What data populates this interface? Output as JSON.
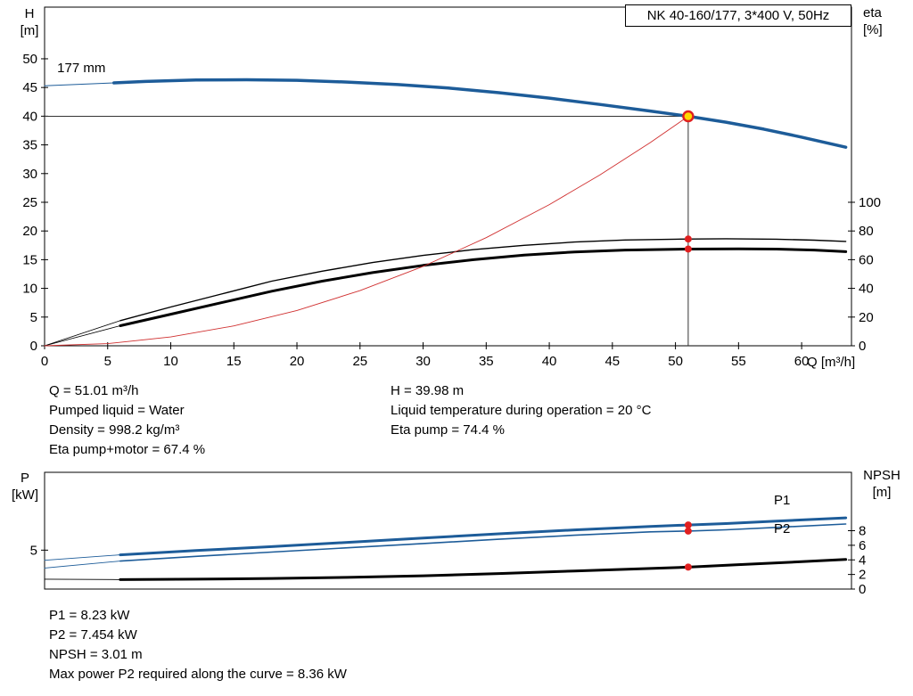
{
  "title_box": {
    "text": "NK 40-160/177, 3*400 V, 50Hz"
  },
  "axis_labels": {
    "top_left_1": "H",
    "top_left_2": "[m]",
    "top_right_1": "eta",
    "top_right_2": "[%]",
    "x_axis": "Q [m³/h]",
    "bottom_left_1": "P",
    "bottom_left_2": "[kW]",
    "bottom_right_1": "NPSH",
    "bottom_right_2": "[m]"
  },
  "info_mid": {
    "left": [
      "Q = 51.01 m³/h",
      "Pumped liquid = Water",
      "Density = 998.2 kg/m³",
      "Eta pump+motor = 67.4 %"
    ],
    "right": [
      "H = 39.98 m",
      "Liquid temperature during operation = 20 °C",
      "Eta pump = 74.4 %"
    ]
  },
  "info_bottom": {
    "lines": [
      "P1 = 8.23 kW",
      "P2 = 7.454 kW",
      "NPSH = 3.01 m",
      "Max power P2 required along the curve = 8.36 kW"
    ]
  },
  "colors": {
    "curve_blue": "#1d5c99",
    "curve_black": "#000000",
    "system_red": "#d03030",
    "marker_red": "#e02020",
    "duty_fill": "#ffd800",
    "guide": "#333333"
  },
  "chart_data": [
    {
      "id": "top",
      "type": "line",
      "title": "NK 40-160/177, 3*400 V, 50Hz",
      "xlabel": "Q [m³/h]",
      "ylabel_left": "H [m]",
      "ylabel_right": "eta [%]",
      "x_range": [
        0,
        63.95
      ],
      "x_ticks": [
        0,
        5,
        10,
        15,
        20,
        25,
        30,
        35,
        40,
        45,
        50,
        55,
        60
      ],
      "left_range": [
        0,
        59
      ],
      "left_ticks": [
        0,
        5,
        10,
        15,
        20,
        25,
        30,
        35,
        40,
        45,
        50
      ],
      "right_range": [
        0,
        236
      ],
      "right_ticks": [
        0,
        20,
        40,
        60,
        80,
        100
      ],
      "series": [
        {
          "name": "head-curve-extension",
          "axis": "left",
          "color": "#1d5c99",
          "width": 1,
          "points": [
            [
              0,
              45.3
            ],
            [
              5.5,
              45.8
            ]
          ]
        },
        {
          "name": "head-curve-177mm",
          "axis": "left",
          "color": "#1d5c99",
          "width": 3.5,
          "points": [
            [
              5.5,
              45.8
            ],
            [
              8,
              46.05
            ],
            [
              12,
              46.3
            ],
            [
              16,
              46.35
            ],
            [
              20,
              46.25
            ],
            [
              24,
              45.95
            ],
            [
              28,
              45.5
            ],
            [
              32,
              44.9
            ],
            [
              36,
              44.1
            ],
            [
              40,
              43.15
            ],
            [
              44,
              42.05
            ],
            [
              48,
              40.9
            ],
            [
              51.01,
              39.98
            ],
            [
              54,
              38.95
            ],
            [
              57,
              37.75
            ],
            [
              60,
              36.35
            ],
            [
              63.5,
              34.6
            ]
          ]
        },
        {
          "name": "eta-pump-extension",
          "axis": "right",
          "color": "#000000",
          "width": 0.8,
          "points": [
            [
              0,
              0
            ],
            [
              6,
              17.5
            ]
          ]
        },
        {
          "name": "eta-pump-curve",
          "axis": "right",
          "color": "#000000",
          "width": 1.4,
          "points": [
            [
              6,
              17.5
            ],
            [
              10,
              27
            ],
            [
              14,
              36
            ],
            [
              18,
              45
            ],
            [
              22,
              52
            ],
            [
              26,
              58
            ],
            [
              30,
              63
            ],
            [
              34,
              67
            ],
            [
              38,
              70
            ],
            [
              42,
              72.3
            ],
            [
              46,
              73.7
            ],
            [
              50,
              74.3
            ],
            [
              54,
              74.6
            ],
            [
              58,
              74.3
            ],
            [
              61,
              73.6
            ],
            [
              63.5,
              72.7
            ]
          ]
        },
        {
          "name": "eta-pump-motor-extension",
          "axis": "right",
          "color": "#000000",
          "width": 0.8,
          "points": [
            [
              0,
              0
            ],
            [
              6,
              14
            ]
          ]
        },
        {
          "name": "eta-pump-motor-curve",
          "axis": "right",
          "color": "#000000",
          "width": 3,
          "points": [
            [
              6,
              14
            ],
            [
              10,
              22
            ],
            [
              14,
              30
            ],
            [
              18,
              38
            ],
            [
              22,
              45
            ],
            [
              26,
              51
            ],
            [
              30,
              56
            ],
            [
              34,
              60
            ],
            [
              38,
              63.2
            ],
            [
              42,
              65.4
            ],
            [
              46,
              66.7
            ],
            [
              51,
              67.4
            ],
            [
              55,
              67.6
            ],
            [
              58,
              67.4
            ],
            [
              61,
              66.7
            ],
            [
              63.5,
              65.6
            ]
          ]
        },
        {
          "name": "system-curve",
          "axis": "left",
          "color": "#d03030",
          "width": 0.9,
          "points": [
            [
              0,
              0
            ],
            [
              5,
              0.38
            ],
            [
              10,
              1.54
            ],
            [
              15,
              3.46
            ],
            [
              20,
              6.15
            ],
            [
              25,
              9.61
            ],
            [
              30,
              13.83
            ],
            [
              35,
              18.83
            ],
            [
              40,
              24.59
            ],
            [
              44,
              29.75
            ],
            [
              48,
              35.4
            ],
            [
              51.01,
              39.98
            ]
          ]
        }
      ],
      "guides": [
        {
          "type": "h",
          "axis": "left",
          "value": 39.98,
          "q_from": 0,
          "q_to": 51.01
        },
        {
          "type": "v",
          "axis": "left",
          "q": 51.01,
          "v_from": 0,
          "v_to": 39.98
        }
      ],
      "markers": [
        {
          "kind": "duty-point",
          "q": 51.01,
          "value": 39.98,
          "axis": "left"
        },
        {
          "kind": "dot",
          "q": 51.01,
          "value": 74.4,
          "axis": "right"
        },
        {
          "kind": "dot",
          "q": 51.01,
          "value": 67.4,
          "axis": "right"
        }
      ],
      "labels": [
        {
          "text": "177 mm",
          "q": 1.0,
          "value": 47.7,
          "axis": "left",
          "color": "#000000"
        }
      ],
      "duty_point": {
        "Q_m3h": 51.01,
        "H_m": 39.98,
        "eta_pump_pct": 74.4,
        "eta_pump_motor_pct": 67.4
      }
    },
    {
      "id": "bottom",
      "type": "line",
      "ylabel_left": "P [kW]",
      "ylabel_right": "NPSH [m]",
      "x_range": [
        0,
        63.95
      ],
      "x_ticks": [],
      "left_range": [
        0,
        15
      ],
      "left_ticks": [
        5
      ],
      "right_range": [
        0,
        16
      ],
      "right_ticks": [
        0,
        2,
        4,
        6,
        8
      ],
      "series": [
        {
          "name": "p1-curve-extension",
          "axis": "left",
          "color": "#1d5c99",
          "width": 0.9,
          "points": [
            [
              0,
              3.7
            ],
            [
              6,
              4.4
            ]
          ]
        },
        {
          "name": "p1-curve",
          "axis": "left",
          "color": "#1d5c99",
          "width": 3,
          "points": [
            [
              6,
              4.4
            ],
            [
              12,
              4.95
            ],
            [
              18,
              5.45
            ],
            [
              24,
              6.0
            ],
            [
              30,
              6.55
            ],
            [
              36,
              7.1
            ],
            [
              42,
              7.6
            ],
            [
              48,
              8.05
            ],
            [
              51.01,
              8.23
            ],
            [
              54,
              8.42
            ],
            [
              58,
              8.72
            ],
            [
              63.5,
              9.15
            ]
          ]
        },
        {
          "name": "p2-curve-extension",
          "axis": "left",
          "color": "#1d5c99",
          "width": 0.9,
          "points": [
            [
              0,
              2.7
            ],
            [
              6,
              3.6
            ]
          ]
        },
        {
          "name": "p2-curve",
          "axis": "left",
          "color": "#1d5c99",
          "width": 1.6,
          "points": [
            [
              6,
              3.6
            ],
            [
              12,
              4.2
            ],
            [
              18,
              4.75
            ],
            [
              24,
              5.3
            ],
            [
              30,
              5.85
            ],
            [
              36,
              6.4
            ],
            [
              42,
              6.92
            ],
            [
              48,
              7.35
            ],
            [
              51.01,
              7.454
            ],
            [
              54,
              7.62
            ],
            [
              58,
              7.92
            ],
            [
              63.5,
              8.36
            ]
          ]
        },
        {
          "name": "npsh-curve-extension",
          "axis": "right",
          "color": "#000000",
          "width": 0.9,
          "points": [
            [
              0,
              1.35
            ],
            [
              6,
              1.3
            ]
          ]
        },
        {
          "name": "npsh-curve",
          "axis": "right",
          "color": "#000000",
          "width": 3,
          "points": [
            [
              6,
              1.3
            ],
            [
              12,
              1.35
            ],
            [
              18,
              1.45
            ],
            [
              24,
              1.6
            ],
            [
              30,
              1.82
            ],
            [
              36,
              2.12
            ],
            [
              42,
              2.48
            ],
            [
              48,
              2.82
            ],
            [
              51.01,
              3.01
            ],
            [
              55,
              3.35
            ],
            [
              60,
              3.75
            ],
            [
              63.5,
              4.05
            ]
          ]
        }
      ],
      "guides": [],
      "markers": [
        {
          "kind": "dot",
          "q": 51.01,
          "value": 8.23,
          "axis": "left"
        },
        {
          "kind": "dot",
          "q": 51.01,
          "value": 7.454,
          "axis": "left"
        },
        {
          "kind": "dot",
          "q": 51.01,
          "value": 3.01,
          "axis": "right"
        }
      ],
      "labels": [
        {
          "text": "P1",
          "q": 57.8,
          "value": 10.88,
          "axis": "left",
          "color": "#1d5c99"
        },
        {
          "text": "P2",
          "q": 57.8,
          "value": 7.22,
          "axis": "left",
          "color": "#1d5c99"
        }
      ],
      "duty_point": {
        "P1_kW": 8.23,
        "P2_kW": 7.454,
        "NPSH_m": 3.01,
        "max_P2_along_curve_kW": 8.36
      }
    }
  ]
}
